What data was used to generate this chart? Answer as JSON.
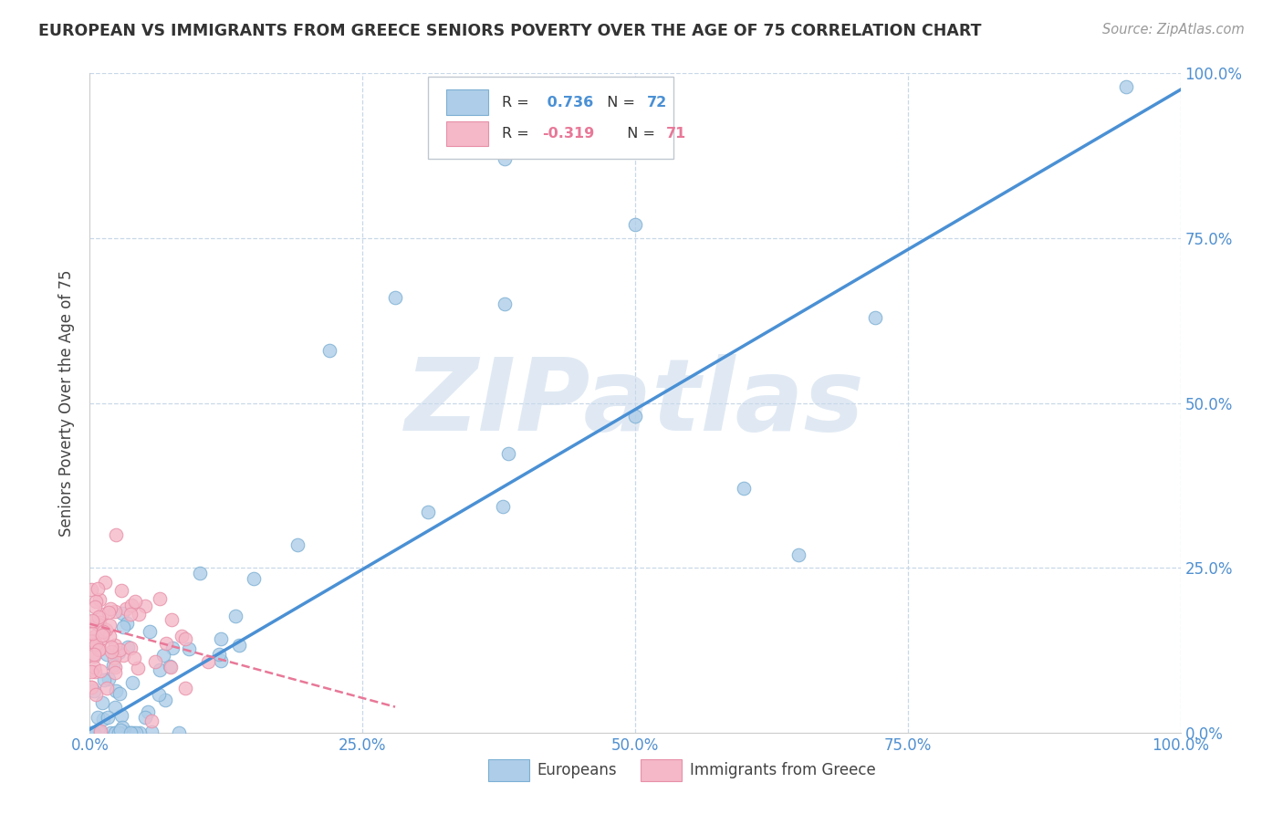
{
  "title": "EUROPEAN VS IMMIGRANTS FROM GREECE SENIORS POVERTY OVER THE AGE OF 75 CORRELATION CHART",
  "source": "Source: ZipAtlas.com",
  "ylabel": "Seniors Poverty Over the Age of 75",
  "watermark": "ZIPatlas",
  "blue_R": 0.736,
  "blue_N": 72,
  "pink_R": -0.319,
  "pink_N": 71,
  "blue_label": "Europeans",
  "pink_label": "Immigrants from Greece",
  "xlim": [
    0,
    1.0
  ],
  "ylim": [
    0,
    1.0
  ],
  "xticks": [
    0.0,
    0.25,
    0.5,
    0.75,
    1.0
  ],
  "yticks": [
    0.0,
    0.25,
    0.5,
    0.75,
    1.0
  ],
  "xtick_labels": [
    "0.0%",
    "25.0%",
    "50.0%",
    "75.0%",
    "100.0%"
  ],
  "ytick_labels": [
    "0.0%",
    "25.0%",
    "50.0%",
    "75.0%",
    "100.0%"
  ],
  "blue_scatter_color": "#aecde8",
  "blue_scatter_edge": "#7bafd4",
  "pink_scatter_color": "#f4b8c8",
  "pink_scatter_edge": "#e890a8",
  "blue_line_color": "#4a90d4",
  "pink_line_color": "#e87898",
  "background_color": "#ffffff",
  "grid_color": "#c8d8e8",
  "title_color": "#333333",
  "tick_color": "#5090d0",
  "legend_blue_color": "#aecde8",
  "legend_pink_color": "#f4b8c8",
  "watermark_color": "#c8d8ea"
}
